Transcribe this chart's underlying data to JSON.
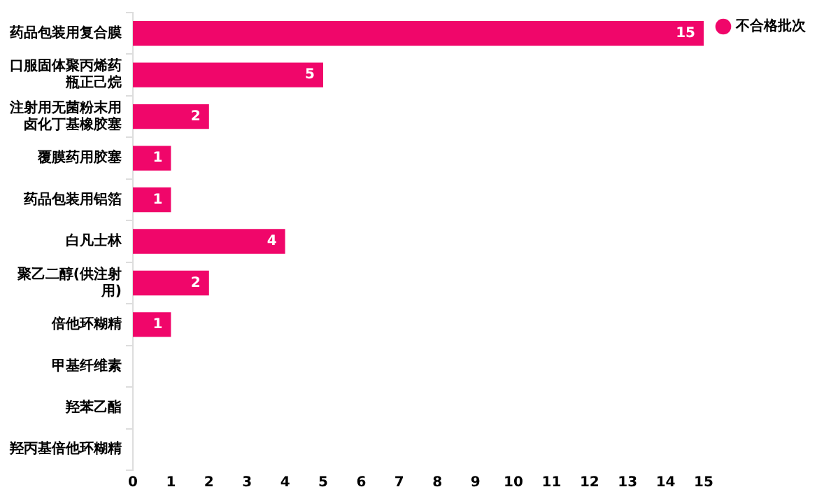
{
  "chart_data": {
    "type": "bar",
    "orientation": "horizontal",
    "categories": [
      "药品包装用复合膜",
      "口服固体聚丙烯药瓶正己烷",
      "注射用无菌粉末用卤化丁基橡胶塞",
      "覆膜药用胶塞",
      "药品包装用铝箔",
      "白凡士林",
      "聚乙二醇(供注射用)",
      "倍他环糊精",
      "甲基纤维素",
      "羟苯乙酯",
      "羟丙基倍他环糊精"
    ],
    "series": [
      {
        "name": "不合格批次",
        "color": "#f0066a",
        "values": [
          15,
          5,
          2,
          1,
          1,
          4,
          2,
          1,
          0,
          0,
          0
        ],
        "value_labels": [
          "15",
          "5",
          "2",
          "1",
          "1",
          "4",
          "2",
          "1",
          null,
          null,
          null
        ]
      }
    ],
    "xlim": [
      0,
      15
    ],
    "xticks": [
      0,
      1,
      2,
      3,
      4,
      5,
      6,
      7,
      8,
      9,
      10,
      11,
      12,
      13,
      14,
      15
    ],
    "grid": false,
    "legend": "top right"
  }
}
